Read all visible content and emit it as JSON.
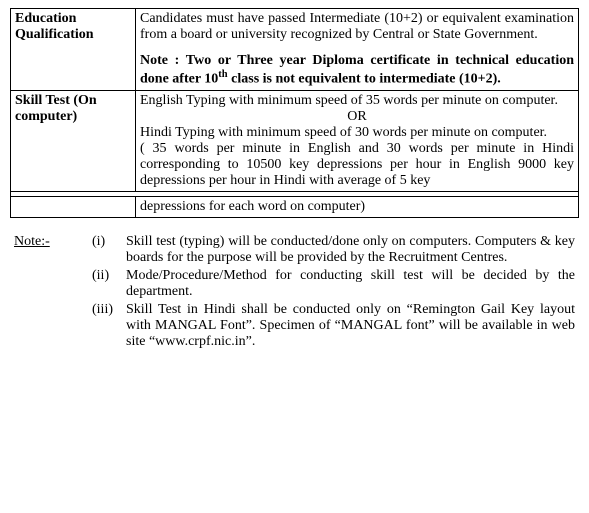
{
  "table": {
    "row1": {
      "label_l1": "Education",
      "label_l2": "Qualification",
      "para1": "Candidates must have passed Intermediate (10+2) or equivalent examination from a board or university recognized by Central or State Government.",
      "note_prefix": "Note : Two or Three year Diploma certificate in technical education done after 10",
      "note_sup": "th",
      "note_suffix": " class is not equivalent to intermediate (10+2)."
    },
    "row2": {
      "label_l1": "Skill Test (On",
      "label_l2": "computer)",
      "eng": "English Typing with minimum speed of 35 words per minute on computer.",
      "or": "OR",
      "hin": "Hindi Typing with minimum speed of 30 words per minute on computer.",
      "detail": "( 35 words per minute in English and 30 words per minute in Hindi corresponding to 10500 key depressions per hour in English 9000 key depressions per hour in Hindi with average of 5 key",
      "dangle": "depressions for each word on computer)"
    }
  },
  "notes": {
    "prefix": "Note:-",
    "items": [
      {
        "num": "(i)",
        "text": "Skill test (typing) will be conducted/done only on computers. Computers & key boards for the purpose will be provided by the Recruitment Centres."
      },
      {
        "num": "(ii)",
        "text": "Mode/Procedure/Method for conducting skill test will be decided by the department."
      },
      {
        "num": "(iii)",
        "text": "Skill Test in Hindi shall be conducted only on “Remington Gail Key layout with MANGAL Font”. Specimen of “MANGAL font” will be available in  web site “www.crpf.nic.in”."
      }
    ]
  }
}
